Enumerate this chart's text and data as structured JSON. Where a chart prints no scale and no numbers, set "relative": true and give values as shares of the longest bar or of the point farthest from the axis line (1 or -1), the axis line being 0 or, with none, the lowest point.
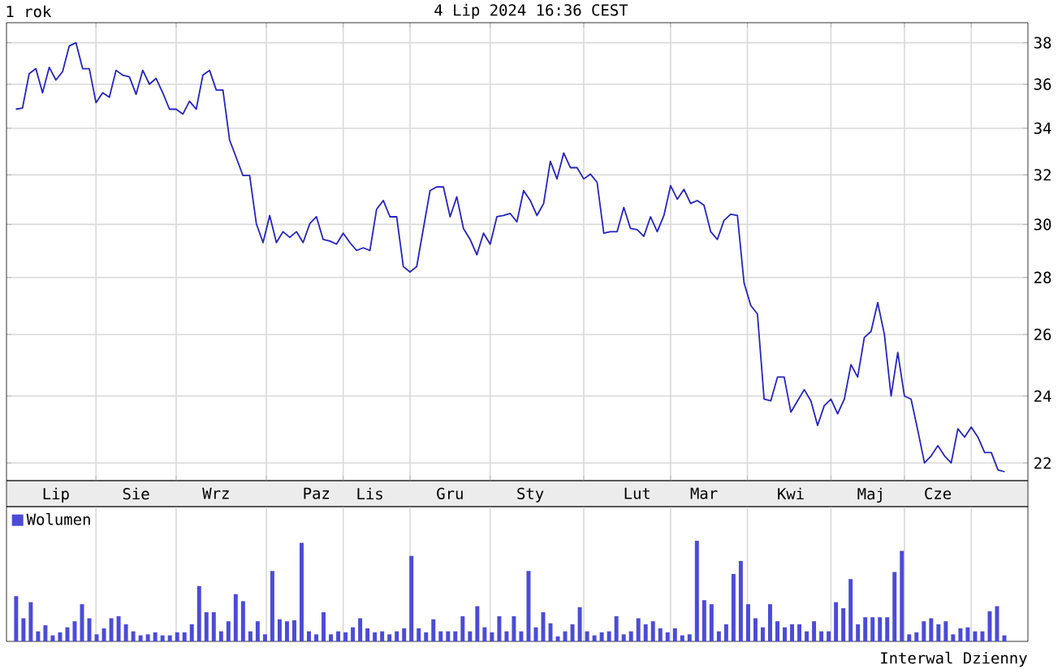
{
  "chart_data": [
    {
      "type": "line",
      "title": "1 rok",
      "annotations": [
        "4 Lip 2024 16:36 CEST"
      ],
      "color": "#2424c0",
      "log": true,
      "grid": true,
      "ylim": [
        21.5,
        39.0
      ],
      "yticks": [
        22,
        24,
        26,
        28,
        30,
        32,
        34,
        36,
        38
      ],
      "categories": [
        null,
        null,
        null,
        null,
        null,
        null,
        "Lip",
        null,
        null,
        null,
        null,
        null,
        null,
        null,
        null,
        null,
        null,
        null,
        "Sie",
        null,
        null,
        null,
        null,
        null,
        null,
        null,
        null,
        null,
        null,
        null,
        "Wrz",
        null,
        null,
        null,
        null,
        null,
        null,
        null,
        null,
        null,
        null,
        null,
        null,
        null,
        null,
        "Paz",
        null,
        null,
        null,
        null,
        null,
        null,
        null,
        "Lis",
        null,
        null,
        null,
        null,
        null,
        null,
        null,
        null,
        null,
        null,
        null,
        "Gru",
        null,
        null,
        null,
        null,
        null,
        null,
        null,
        null,
        null,
        null,
        null,
        "Sty",
        null,
        null,
        null,
        null,
        null,
        null,
        null,
        null,
        null,
        null,
        null,
        null,
        null,
        null,
        null,
        "Lut",
        null,
        null,
        null,
        null,
        null,
        null,
        null,
        null,
        null,
        "Mar",
        null,
        null,
        null,
        null,
        null,
        null,
        null,
        null,
        null,
        null,
        null,
        null,
        "Kwi",
        null,
        null,
        null,
        null,
        null,
        null,
        null,
        null,
        null,
        null,
        null,
        "Maj",
        null,
        null,
        null,
        null,
        null,
        null,
        null,
        null,
        null,
        "Cze",
        null,
        null,
        null,
        null,
        null,
        null,
        null,
        null,
        null,
        null
      ],
      "values": [
        34.85,
        34.9,
        36.5,
        36.74,
        35.6,
        36.8,
        36.2,
        36.6,
        37.84,
        38.0,
        36.74,
        36.74,
        35.15,
        35.6,
        35.4,
        36.66,
        36.43,
        36.35,
        35.53,
        36.66,
        36.0,
        36.28,
        35.6,
        34.85,
        34.85,
        34.63,
        35.22,
        34.85,
        36.43,
        36.66,
        35.73,
        35.73,
        33.48,
        32.72,
        31.97,
        31.97,
        30.03,
        29.3,
        30.35,
        29.3,
        29.72,
        29.5,
        29.72,
        29.3,
        30.03,
        30.3,
        29.42,
        29.36,
        29.24,
        29.66,
        29.3,
        29.0,
        29.1,
        29.0,
        30.6,
        30.95,
        30.3,
        30.3,
        28.4,
        28.2,
        28.4,
        29.84,
        31.35,
        31.5,
        31.5,
        30.3,
        31.1,
        29.84,
        29.42,
        28.84,
        29.66,
        29.24,
        30.3,
        30.35,
        30.43,
        30.1,
        31.35,
        30.95,
        30.35,
        30.83,
        32.57,
        31.83,
        32.92,
        32.3,
        32.3,
        31.83,
        32.03,
        31.69,
        29.66,
        29.72,
        29.72,
        30.67,
        29.84,
        29.8,
        29.54,
        30.3,
        29.72,
        30.35,
        31.55,
        31.0,
        31.4,
        30.83,
        30.95,
        30.76,
        29.72,
        29.42,
        30.16,
        30.4,
        30.35,
        27.8,
        27.0,
        26.7,
        23.9,
        23.85,
        24.6,
        24.6,
        23.5,
        23.85,
        24.2,
        23.85,
        23.1,
        23.7,
        23.9,
        23.45,
        23.9,
        25.0,
        24.6,
        25.9,
        26.1,
        27.1,
        26.0,
        24.0,
        25.4,
        24.0,
        23.9,
        22.95,
        22.0,
        22.2,
        22.5,
        22.2,
        22.0,
        23.0,
        22.75,
        23.05,
        22.75,
        22.3,
        22.3,
        21.8,
        21.75
      ]
    },
    {
      "type": "bar",
      "relative": true,
      "grid": "x",
      "legend": "top left",
      "annotations": [
        "Interwal Dzienny"
      ],
      "categories": [
        null,
        null,
        null,
        null,
        null,
        null,
        null,
        null,
        null,
        null,
        null,
        null,
        null,
        null,
        null,
        null,
        null,
        null,
        null,
        null,
        null,
        null,
        null,
        null,
        null,
        null,
        null,
        null,
        null,
        null,
        null,
        null,
        null,
        null,
        null,
        null,
        null,
        null,
        null,
        null,
        null,
        null,
        null,
        null,
        null,
        null,
        null,
        null,
        null,
        null,
        null,
        null,
        null,
        null,
        null,
        null,
        null,
        null,
        null,
        null,
        null,
        null,
        null,
        null,
        null,
        null,
        null,
        null,
        null,
        null,
        null,
        null,
        null,
        null,
        null,
        null,
        null,
        null,
        null,
        null,
        null,
        null,
        null,
        null,
        null,
        null,
        null,
        null,
        null,
        null,
        null,
        null,
        null,
        null,
        null,
        null,
        null,
        null,
        null,
        null,
        null,
        null,
        null,
        null,
        null,
        null,
        null,
        null,
        null,
        null,
        null,
        null,
        null,
        null,
        null,
        null,
        null,
        null,
        null,
        null,
        null,
        null,
        null,
        null,
        null,
        null,
        null,
        null,
        null,
        null,
        null,
        null,
        null,
        null,
        null,
        null
      ],
      "series": [
        {
          "name": "Wolumen",
          "color": "#4b4bd8",
          "values": [
            0.45,
            0.23,
            0.39,
            0.1,
            0.16,
            0.06,
            0.09,
            0.14,
            0.2,
            0.37,
            0.23,
            0.07,
            0.13,
            0.23,
            0.25,
            0.17,
            0.1,
            0.06,
            0.07,
            0.09,
            0.06,
            0.06,
            0.09,
            0.09,
            0.17,
            0.55,
            0.29,
            0.29,
            0.1,
            0.2,
            0.47,
            0.4,
            0.1,
            0.2,
            0.07,
            0.7,
            0.22,
            0.2,
            0.21,
            0.98,
            0.1,
            0.07,
            0.29,
            0.07,
            0.1,
            0.09,
            0.14,
            0.23,
            0.13,
            0.09,
            0.1,
            0.07,
            0.1,
            0.13,
            0.85,
            0.13,
            0.09,
            0.22,
            0.1,
            0.1,
            0.1,
            0.25,
            0.1,
            0.35,
            0.14,
            0.09,
            0.25,
            0.1,
            0.25,
            0.1,
            0.7,
            0.14,
            0.29,
            0.18,
            0.05,
            0.1,
            0.17,
            0.34,
            0.1,
            0.06,
            0.09,
            0.1,
            0.25,
            0.07,
            0.1,
            0.23,
            0.17,
            0.2,
            0.13,
            0.09,
            0.13,
            0.06,
            0.07,
            1.0,
            0.41,
            0.37,
            0.1,
            0.17,
            0.67,
            0.8,
            0.37,
            0.23,
            0.14,
            0.37,
            0.2,
            0.14,
            0.17,
            0.17,
            0.1,
            0.2,
            0.1,
            0.1,
            0.39,
            0.33,
            0.62,
            0.17,
            0.24,
            0.24,
            0.24,
            0.24,
            0.69,
            0.9,
            0.07,
            0.09,
            0.2,
            0.23,
            0.17,
            0.2,
            0.07,
            0.13,
            0.14,
            0.1,
            0.1,
            0.3,
            0.35,
            0.06
          ]
        }
      ]
    }
  ]
}
